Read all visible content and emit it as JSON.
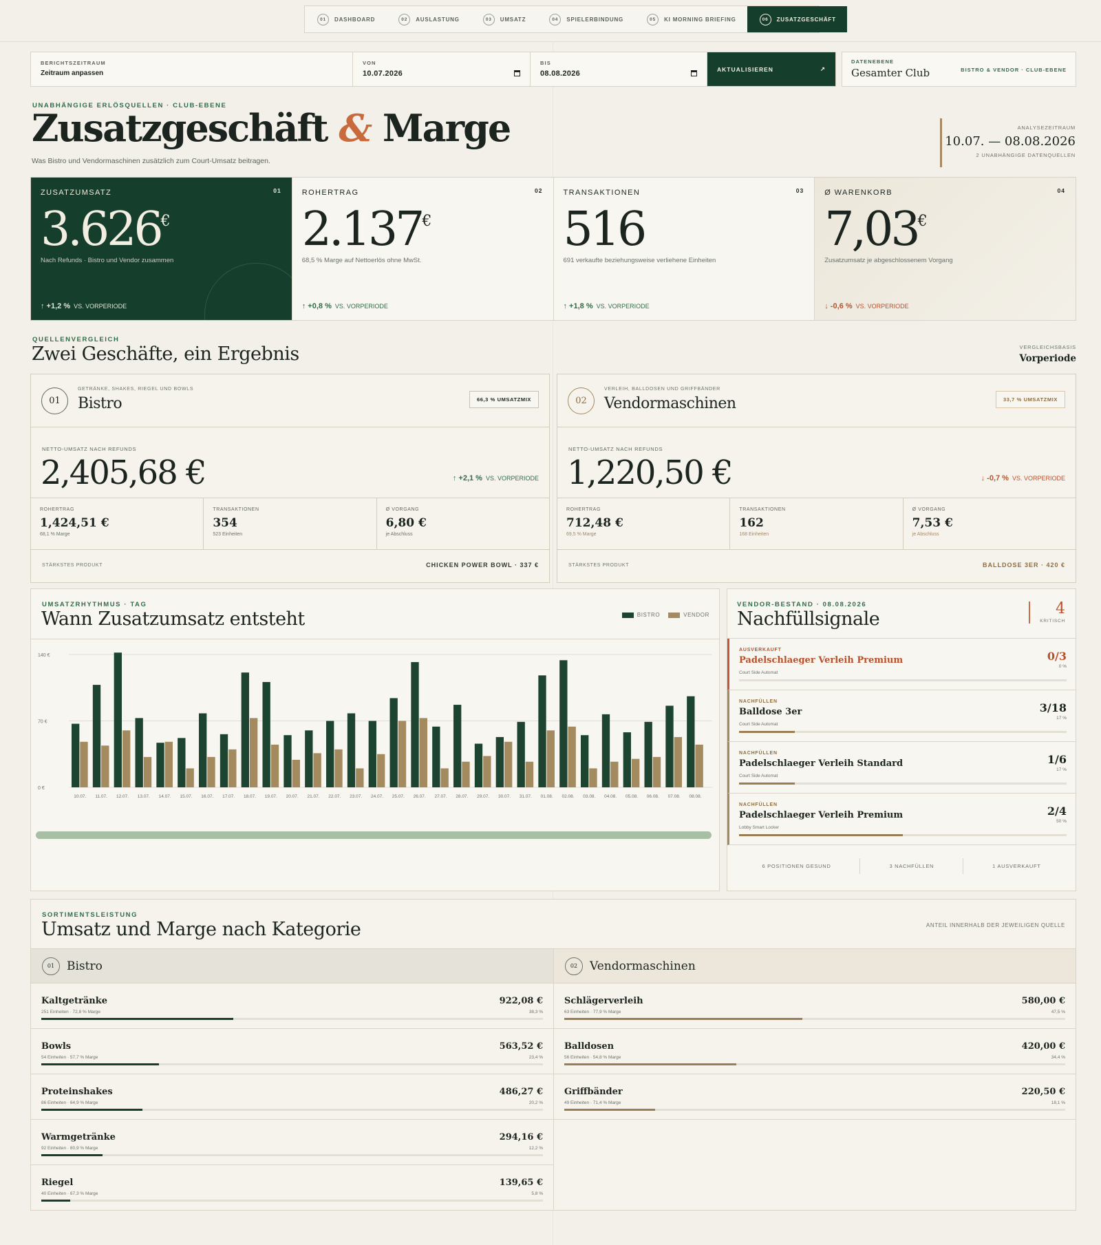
{
  "nav": {
    "tabs": [
      {
        "num": "01",
        "label": "DASHBOARD"
      },
      {
        "num": "02",
        "label": "AUSLASTUNG"
      },
      {
        "num": "03",
        "label": "UMSATZ"
      },
      {
        "num": "04",
        "label": "SPIELERBINDUNG"
      },
      {
        "num": "05",
        "label": "KI MORNING BRIEFING"
      },
      {
        "num": "06",
        "label": "ZUSATZGESCHÄFT"
      }
    ]
  },
  "filter": {
    "period_label": "BERICHTSZEITRAUM",
    "period_value": "Zeitraum anpassen",
    "from_label": "VON",
    "from_value": "10.07.2026",
    "to_label": "BIS",
    "to_value": "08.08.2026",
    "refresh_label": "AKTUALISIEREN",
    "refresh_icon": "↗",
    "layer_label": "DATENEBENE",
    "layer_value": "Gesamter Club",
    "layer_right": "BISTRO & VENDOR · CLUB-EBENE"
  },
  "header": {
    "eyebrow": "UNABHÄNGIGE ERLÖSQUELLEN · CLUB-EBENE",
    "title_a": "Zusatzgeschäft",
    "title_amp": "&",
    "title_b": "Marge",
    "subtitle": "Was Bistro und Vendormaschinen zusätzlich zum Court-Umsatz beitragen.",
    "period_label": "ANALYSEZEITRAUM",
    "period_dates": "10.07. — 08.08.2026",
    "period_sources": "2 UNABHÄNGIGE DATENQUELLEN"
  },
  "kpis": [
    {
      "title": "ZUSATZUMSATZ",
      "idx": "01",
      "value": "3.626",
      "unit": "€",
      "desc": "Nach Refunds · Bistro und Vendor zusammen",
      "trend": "↑ +1,2 %",
      "vs": "VS. VORPERIODE"
    },
    {
      "title": "ROHERTRAG",
      "idx": "02",
      "value": "2.137",
      "unit": "€",
      "desc": "68,5 % Marge auf Nettoerlös ohne MwSt.",
      "trend": "↑ +0,8 %",
      "vs": "VS. VORPERIODE"
    },
    {
      "title": "TRANSAKTIONEN",
      "idx": "03",
      "value": "516",
      "unit": "",
      "desc": "691 verkaufte beziehungsweise verliehene Einheiten",
      "trend": "↑ +1,8 %",
      "vs": "VS. VORPERIODE"
    },
    {
      "title": "Ø WARENKORB",
      "idx": "04",
      "value": "7,03",
      "unit": "€",
      "desc": "Zusatzumsatz je abgeschlossenem Vorgang",
      "trend": "↓ -0,6 %",
      "vs": "VS. VORPERIODE"
    }
  ],
  "comparison": {
    "eyebrow": "QUELLENVERGLEICH",
    "title": "Zwei Geschäfte, ein Ergebnis",
    "basis_label": "VERGLEICHSBASIS",
    "basis_value": "Vorperiode"
  },
  "sources": [
    {
      "num": "01",
      "tag": "GETRÄNKE, SHAKES, RIEGEL UND BOWLS",
      "name": "Bistro",
      "mix": "66,3 % UMSATZMIX",
      "net_label": "NETTO-UMSATZ NACH REFUNDS",
      "net_value": "2,405,68 €",
      "trend": "↑ +2,1 %",
      "vs": "VS. VORPERIODE",
      "stats": [
        {
          "l": "ROHERTRAG",
          "v": "1,424,51 €",
          "s": "68,1 % Marge"
        },
        {
          "l": "TRANSAKTIONEN",
          "v": "354",
          "s": "523 Einheiten"
        },
        {
          "l": "Ø VORGANG",
          "v": "6,80 €",
          "s": "je Abschluss"
        }
      ],
      "top_label": "STÄRKSTES PRODUKT",
      "top_value": "CHICKEN POWER BOWL · 337 €"
    },
    {
      "num": "02",
      "tag": "VERLEIH, BALLDOSEN UND GRIFFBÄNDER",
      "name": "Vendormaschinen",
      "mix": "33,7 % UMSATZMIX",
      "net_label": "NETTO-UMSATZ NACH REFUNDS",
      "net_value": "1,220,50 €",
      "trend": "↓ -0,7 %",
      "vs": "VS. VORPERIODE",
      "stats": [
        {
          "l": "ROHERTRAG",
          "v": "712,48 €",
          "s": "69,5 % Marge"
        },
        {
          "l": "TRANSAKTIONEN",
          "v": "162",
          "s": "168 Einheiten"
        },
        {
          "l": "Ø VORGANG",
          "v": "7,53 €",
          "s": "je Abschluss"
        }
      ],
      "top_label": "STÄRKSTES PRODUKT",
      "top_value": "BALLDOSE 3ER · 420 €"
    }
  ],
  "rhythm": {
    "eyebrow": "UMSATZRHYTHMUS · TAG",
    "title": "Wann Zusatzumsatz entsteht"
  },
  "chart_data": {
    "type": "bar",
    "categories": [
      "10.07.",
      "11.07.",
      "12.07.",
      "13.07.",
      "14.07.",
      "15.07.",
      "16.07.",
      "17.07.",
      "18.07.",
      "19.07.",
      "20.07.",
      "21.07.",
      "22.07.",
      "23.07.",
      "24.07.",
      "25.07.",
      "26.07.",
      "27.07.",
      "28.07.",
      "29.07.",
      "30.07.",
      "31.07.",
      "01.08.",
      "02.08.",
      "03.08.",
      "04.08.",
      "05.08.",
      "06.08.",
      "07.08.",
      "08.08."
    ],
    "series": [
      {
        "name": "BISTRO",
        "color": "#1c4431",
        "values": [
          67,
          108,
          142,
          73,
          47,
          52,
          78,
          56,
          121,
          111,
          55,
          60,
          70,
          78,
          70,
          94,
          132,
          64,
          87,
          46,
          53,
          69,
          118,
          134,
          55,
          77,
          58,
          69,
          86,
          96
        ]
      },
      {
        "name": "VENDOR",
        "color": "#a38a5f",
        "values": [
          48,
          44,
          60,
          32,
          48,
          20,
          32,
          40,
          73,
          45,
          29,
          36,
          40,
          20,
          35,
          70,
          73,
          20,
          27,
          33,
          48,
          27,
          60,
          64,
          20,
          27,
          30,
          32,
          53,
          45
        ]
      }
    ],
    "yticks": [
      "0 €",
      "70 €",
      "140 €"
    ],
    "ylim": [
      0,
      140
    ]
  },
  "refill": {
    "eyebrow": "VENDOR-BESTAND · 08.08.2026",
    "title": "Nachfüllsignale",
    "critical_count": "4",
    "critical_label": "KRITISCH",
    "items": [
      {
        "status": "AUSVERKAUFT",
        "name": "Padelschlaeger Verleih Premium",
        "loc": "Court Side Automat",
        "fill": "0/3",
        "pct": "0 %",
        "level": 0,
        "critical": true
      },
      {
        "status": "NACHFÜLLEN",
        "name": "Balldose 3er",
        "loc": "Court Side Automat",
        "fill": "3/18",
        "pct": "17 %",
        "level": 17,
        "critical": false
      },
      {
        "status": "NACHFÜLLEN",
        "name": "Padelschlaeger Verleih Standard",
        "loc": "Court Side Automat",
        "fill": "1/6",
        "pct": "17 %",
        "level": 17,
        "critical": false
      },
      {
        "status": "NACHFÜLLEN",
        "name": "Padelschlaeger Verleih Premium",
        "loc": "Lobby Smart Locker",
        "fill": "2/4",
        "pct": "50 %",
        "level": 50,
        "critical": false
      }
    ],
    "summary": [
      "6 POSITIONEN GESUND",
      "3 NACHFÜLLEN",
      "1 AUSVERKAUFT"
    ]
  },
  "categories": {
    "eyebrow": "SORTIMENTSLEISTUNG",
    "title": "Umsatz und Marge nach Kategorie",
    "note": "ANTEIL INNERHALB DER JEWEILIGEN QUELLE",
    "columns": [
      {
        "num": "01",
        "name": "Bistro",
        "rows": [
          {
            "n": "Kaltgetränke",
            "s": "251 Einheiten · 72,8 % Marge",
            "v": "922,08 €",
            "p": "38,3 %",
            "share": 38.3
          },
          {
            "n": "Bowls",
            "s": "54 Einheiten · 57,7 % Marge",
            "v": "563,52 €",
            "p": "23,4 %",
            "share": 23.4
          },
          {
            "n": "Proteinshakes",
            "s": "86 Einheiten · 64,9 % Marge",
            "v": "486,27 €",
            "p": "20,2 %",
            "share": 20.2
          },
          {
            "n": "Warmgetränke",
            "s": "92 Einheiten · 80,9 % Marge",
            "v": "294,16 €",
            "p": "12,2 %",
            "share": 12.2
          },
          {
            "n": "Riegel",
            "s": "40 Einheiten · 67,3 % Marge",
            "v": "139,65 €",
            "p": "5,8 %",
            "share": 5.8
          }
        ]
      },
      {
        "num": "02",
        "name": "Vendormaschinen",
        "rows": [
          {
            "n": "Schlägerverleih",
            "s": "63 Einheiten · 77,9 % Marge",
            "v": "580,00 €",
            "p": "47,5 %",
            "share": 47.5
          },
          {
            "n": "Balldosen",
            "s": "56 Einheiten · 54,8 % Marge",
            "v": "420,00 €",
            "p": "34,4 %",
            "share": 34.4
          },
          {
            "n": "Griffbänder",
            "s": "49 Einheiten · 71,4 % Marge",
            "v": "220,50 €",
            "p": "18,1 %",
            "share": 18.1
          }
        ]
      }
    ]
  }
}
